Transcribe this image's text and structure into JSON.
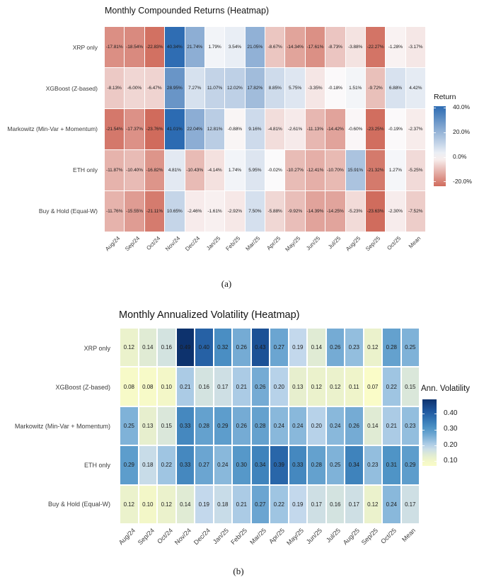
{
  "page": {
    "background": "#ffffff"
  },
  "chart_data": [
    {
      "type": "heatmap",
      "title": "Monthly Compounded Returns (Heatmap)",
      "caption": "(a)",
      "cell_format": "pct",
      "x_categories": [
        "Aug/24",
        "Sep/24",
        "Oct/24",
        "Nov/24",
        "Dec/24",
        "Jan/25",
        "Feb/25",
        "Mar/25",
        "Apr/25",
        "May/25",
        "Jun/25",
        "Jul/25",
        "Aug/25",
        "Sep/25",
        "Oct/25",
        "Mean"
      ],
      "y_categories": [
        "XRP only",
        "XGBoost (Z-based)",
        "Markowitz (Min-Var + Momentum)",
        "ETH only",
        "Buy & Hold (Equal-W)"
      ],
      "values": [
        [
          -17.81,
          -18.54,
          -22.83,
          40.34,
          21.74,
          1.79,
          3.54,
          21.05,
          -8.67,
          -14.34,
          -17.61,
          -8.73,
          -3.88,
          -22.27,
          -1.28,
          -3.17
        ],
        [
          -8.13,
          -6.0,
          -6.47,
          28.95,
          7.27,
          11.07,
          12.02,
          17.82,
          8.85,
          5.75,
          -3.35,
          -0.18,
          1.51,
          -9.72,
          6.88,
          4.42
        ],
        [
          -21.54,
          -17.37,
          -23.76,
          41.01,
          22.04,
          12.81,
          -0.88,
          9.16,
          -4.81,
          -2.61,
          -11.13,
          -14.42,
          -0.6,
          -23.25,
          -0.19,
          -2.37
        ],
        [
          -11.87,
          -10.4,
          -16.82,
          4.81,
          -10.43,
          -4.14,
          1.74,
          5.95,
          -0.02,
          -10.27,
          -12.41,
          -10.7,
          15.91,
          -21.32,
          1.27,
          -5.25
        ],
        [
          -11.76,
          -15.55,
          -21.11,
          10.65,
          -2.46,
          -1.61,
          -2.92,
          7.5,
          -5.88,
          -9.92,
          -14.39,
          -14.25,
          -5.23,
          -23.63,
          -2.3,
          -7.52
        ]
      ],
      "legend": {
        "title": "Return",
        "tick_labels": [
          "40.0%",
          "20.0%",
          "0.0%",
          "-20.0%"
        ],
        "tick_values": [
          40,
          20,
          0,
          -20
        ],
        "range": [
          -23.76,
          41.01
        ]
      },
      "color_scale": {
        "type": "diverging",
        "negative": "#d06b5c",
        "zero": "#fbfafb",
        "positive": "#2c6bb2",
        "domain": [
          -23.76,
          0,
          41.01
        ]
      }
    },
    {
      "type": "heatmap",
      "title": "Monthly Annualized Volatility (Heatmap)",
      "caption": "(b)",
      "cell_format": "fix2",
      "x_categories": [
        "Aug/24",
        "Sep/24",
        "Oct/24",
        "Nov/24",
        "Dec/24",
        "Jan/25",
        "Feb/25",
        "Mar/25",
        "Apr/25",
        "May/25",
        "Jun/25",
        "Jul/25",
        "Aug/25",
        "Sep/25",
        "Oct/25",
        "Mean"
      ],
      "y_categories": [
        "XRP only",
        "XGBoost (Z-based)",
        "Markowitz (Min-Var + Momentum)",
        "ETH only",
        "Buy & Hold (Equal-W)"
      ],
      "values": [
        [
          0.12,
          0.14,
          0.16,
          0.49,
          0.4,
          0.32,
          0.26,
          0.43,
          0.27,
          0.19,
          0.14,
          0.26,
          0.23,
          0.12,
          0.28,
          0.25
        ],
        [
          0.08,
          0.08,
          0.1,
          0.21,
          0.16,
          0.17,
          0.21,
          0.26,
          0.2,
          0.13,
          0.12,
          0.12,
          0.11,
          0.07,
          0.22,
          0.15
        ],
        [
          0.25,
          0.13,
          0.15,
          0.33,
          0.28,
          0.29,
          0.26,
          0.28,
          0.24,
          0.24,
          0.2,
          0.24,
          0.26,
          0.14,
          0.21,
          0.23
        ],
        [
          0.29,
          0.18,
          0.22,
          0.33,
          0.27,
          0.24,
          0.3,
          0.34,
          0.39,
          0.33,
          0.28,
          0.25,
          0.34,
          0.23,
          0.31,
          0.29
        ],
        [
          0.12,
          0.1,
          0.12,
          0.14,
          0.19,
          0.18,
          0.21,
          0.27,
          0.22,
          0.19,
          0.17,
          0.16,
          0.17,
          0.12,
          0.24,
          0.17
        ]
      ],
      "legend": {
        "title": "Ann. Volatility",
        "tick_labels": [
          "0.40",
          "0.30",
          "0.20",
          "0.10"
        ],
        "tick_values": [
          0.4,
          0.3,
          0.2,
          0.1
        ],
        "range": [
          0.07,
          0.49
        ]
      },
      "color_scale": {
        "type": "sequential",
        "stops": [
          [
            0.05,
            "#feffc8"
          ],
          [
            0.1,
            "#f3f7c8"
          ],
          [
            0.13,
            "#e7efce"
          ],
          [
            0.16,
            "#d3e3e0"
          ],
          [
            0.19,
            "#c3d8ec"
          ],
          [
            0.23,
            "#93bede"
          ],
          [
            0.27,
            "#6ba5d1"
          ],
          [
            0.31,
            "#4f94c6"
          ],
          [
            0.36,
            "#3577b5"
          ],
          [
            0.42,
            "#1e569d"
          ],
          [
            0.5,
            "#0b2d66"
          ]
        ]
      }
    }
  ]
}
